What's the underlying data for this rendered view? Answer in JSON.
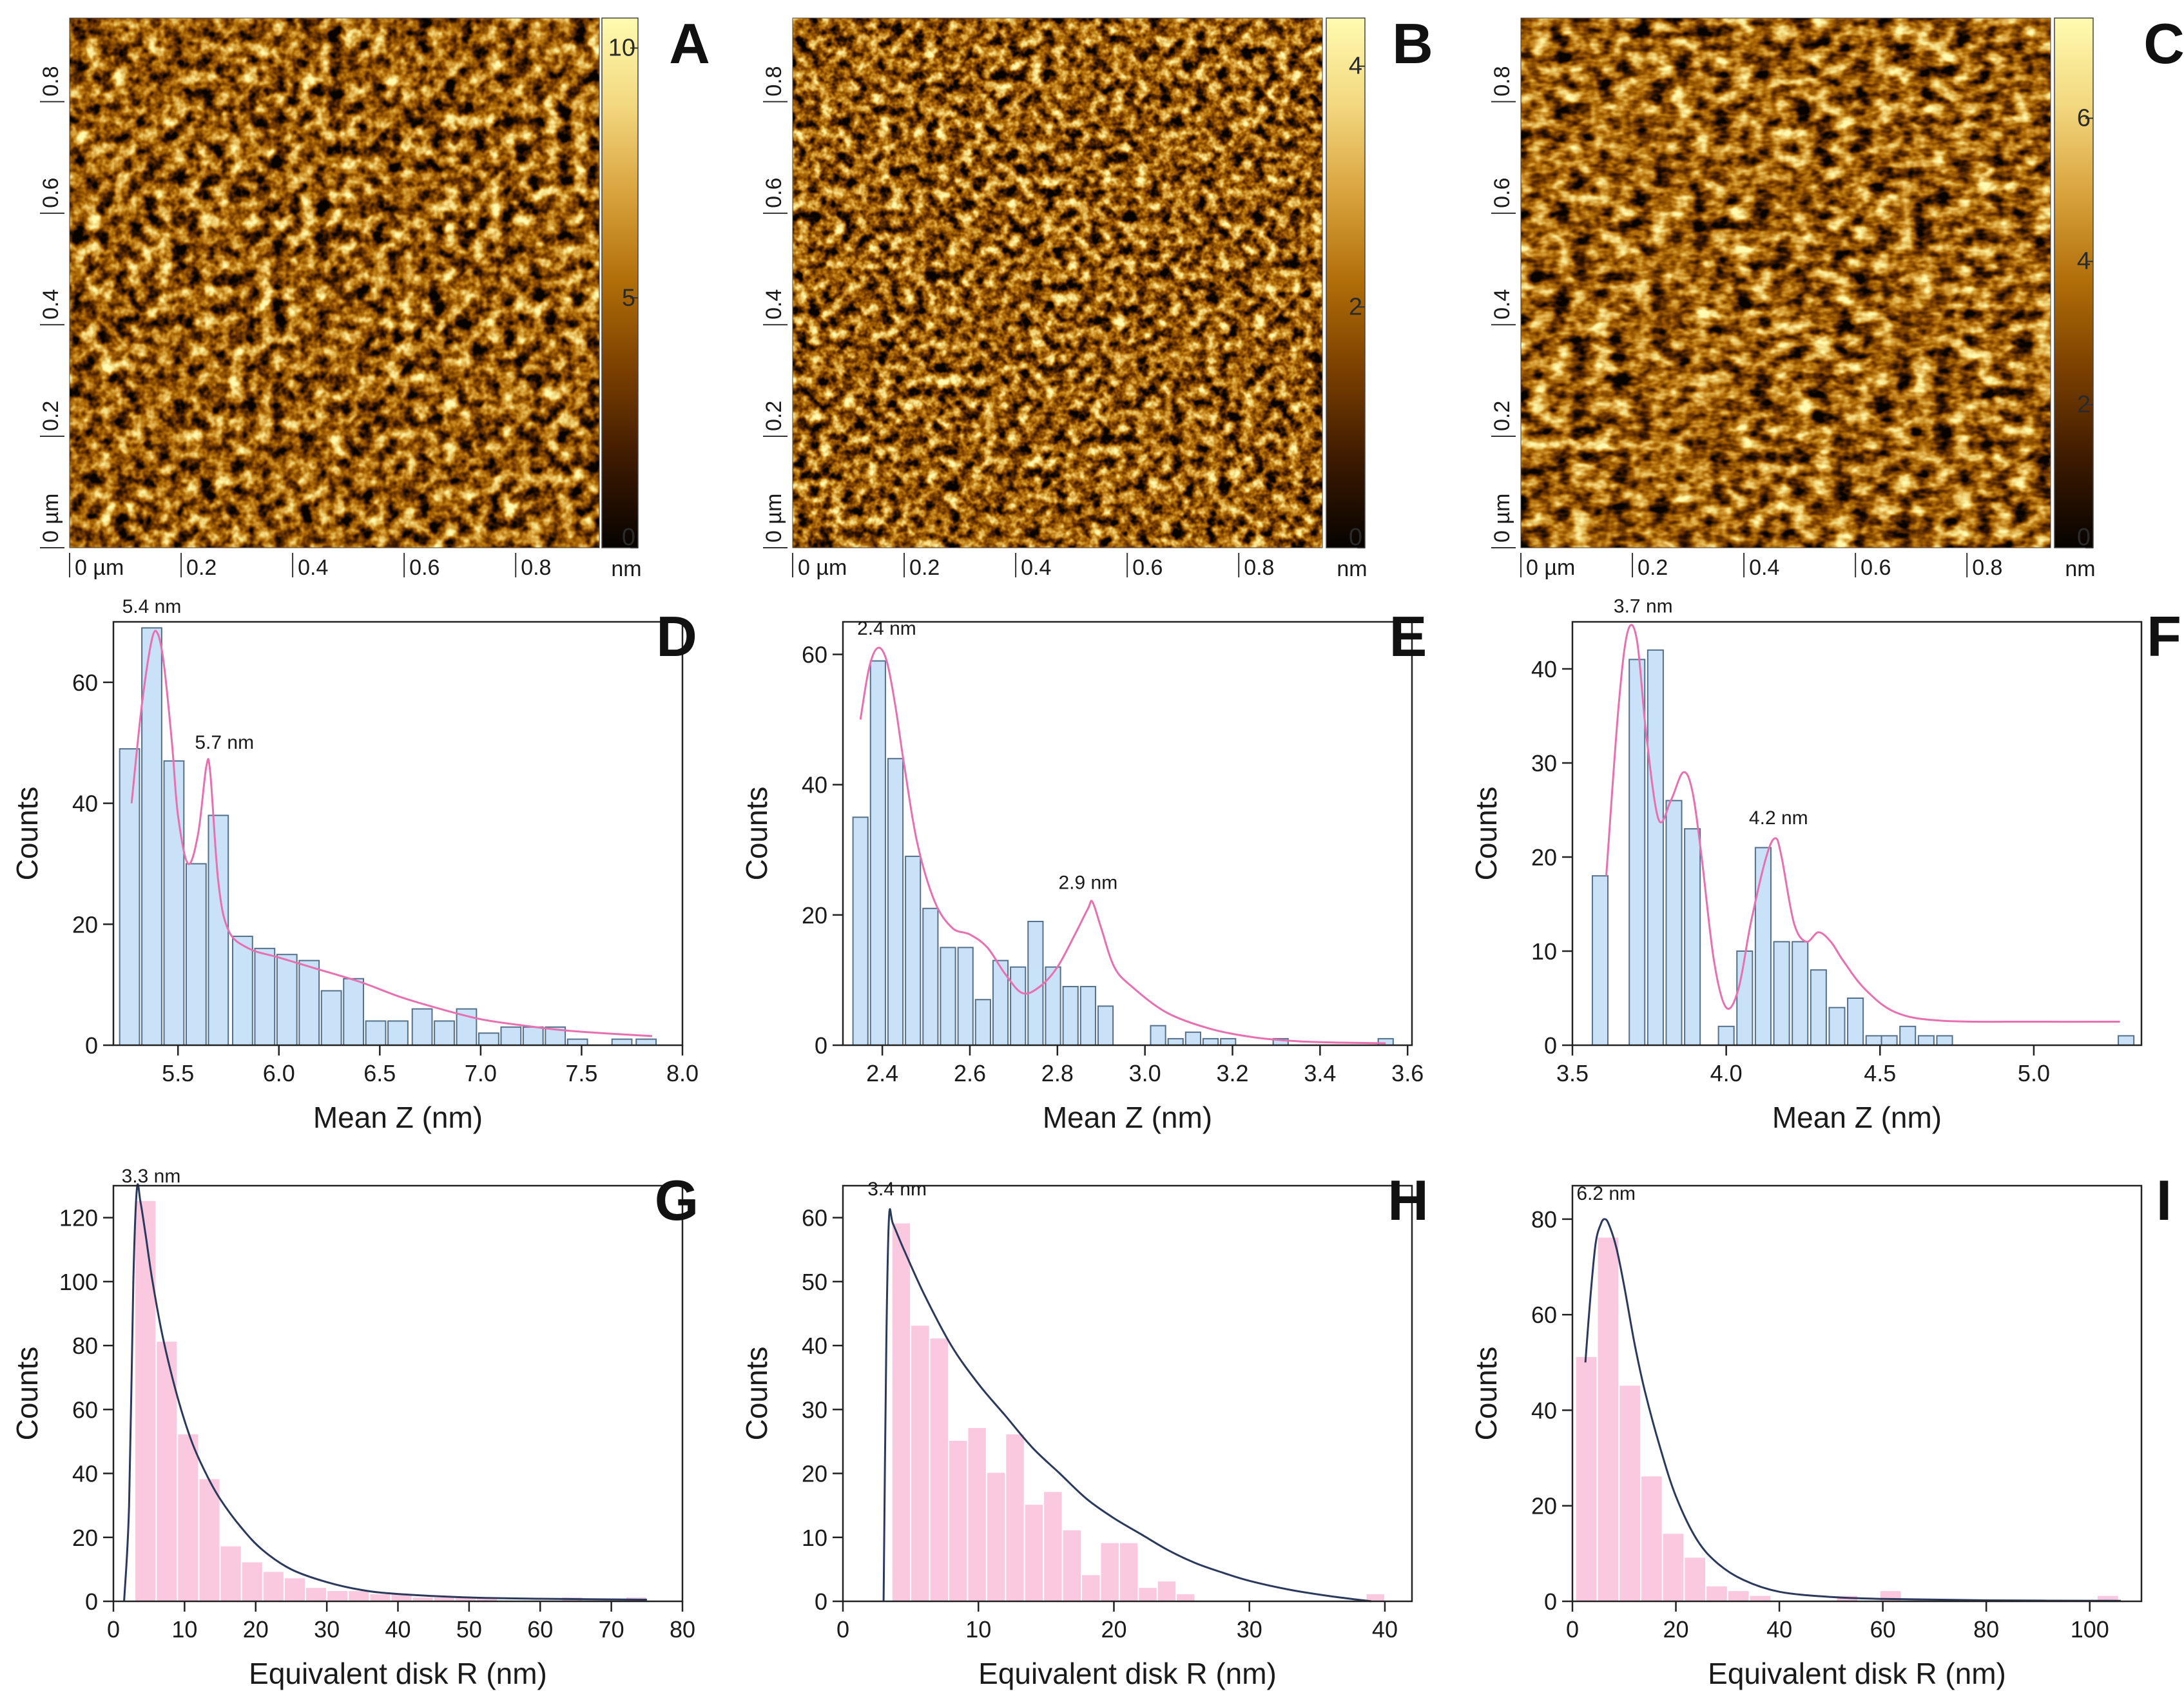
{
  "figure": {
    "afm_panels": [
      {
        "letter": "A",
        "x_ticks": [
          "0 µm",
          "0.2",
          "0.4",
          "0.6",
          "0.8"
        ],
        "y_ticks": [
          "0 µm",
          "0.2",
          "0.4",
          "0.6",
          "0.8"
        ],
        "scale_ticks": [
          "0",
          "5",
          "10"
        ],
        "scale_values": [
          0,
          5,
          10
        ],
        "scale_max": 10.6,
        "unit": "nm",
        "colormap": [
          "#060300",
          "#3d1a00",
          "#7a3f00",
          "#b06d08",
          "#d8a23c",
          "#f2d77e",
          "#fffbb0"
        ]
      },
      {
        "letter": "B",
        "x_ticks": [
          "0 µm",
          "0.2",
          "0.4",
          "0.6",
          "0.8"
        ],
        "y_ticks": [
          "0 µm",
          "0.2",
          "0.4",
          "0.6",
          "0.8"
        ],
        "scale_ticks": [
          "0",
          "2",
          "4"
        ],
        "scale_values": [
          0,
          2,
          4
        ],
        "scale_max": 4.4,
        "unit": "nm",
        "colormap": [
          "#060300",
          "#3d1a00",
          "#7a3f00",
          "#b06d08",
          "#d8a23c",
          "#f2d77e",
          "#fffbb0"
        ]
      },
      {
        "letter": "C",
        "x_ticks": [
          "0 µm",
          "0.2",
          "0.4",
          "0.6",
          "0.8"
        ],
        "y_ticks": [
          "0 µm",
          "0.2",
          "0.4",
          "0.6",
          "0.8"
        ],
        "scale_ticks": [
          "0",
          "2",
          "4",
          "6"
        ],
        "scale_values": [
          0,
          2,
          4,
          6
        ],
        "scale_max": 7.4,
        "unit": "nm",
        "colormap": [
          "#060300",
          "#3d1a00",
          "#7a3f00",
          "#b06d08",
          "#d8a23c",
          "#f2d77e",
          "#fffbb0"
        ]
      }
    ]
  },
  "chart_data": [
    {
      "panel": "D",
      "type": "bar",
      "xlabel": "Mean Z (nm)",
      "ylabel": "Counts",
      "xlim": [
        5.18,
        8.0
      ],
      "ylim": [
        0,
        70
      ],
      "x_ticks": [
        5.5,
        6.0,
        6.5,
        7.0,
        7.5,
        8.0
      ],
      "x_tick_labels": [
        "5.5",
        "6.0",
        "6.5",
        "7.0",
        "7.5",
        "8.0"
      ],
      "y_ticks": [
        0,
        20,
        40,
        60
      ],
      "y_tick_labels": [
        "0",
        "20",
        "40",
        "60"
      ],
      "bin_width": 0.111,
      "bins": [
        5.26,
        5.37,
        5.48,
        5.59,
        5.7,
        5.82,
        5.93,
        6.04,
        6.15,
        6.26,
        6.37,
        6.48,
        6.59,
        6.71,
        6.82,
        6.93,
        7.04,
        7.15,
        7.26,
        7.37,
        7.48,
        7.59,
        7.7,
        7.82
      ],
      "values": [
        49,
        69,
        47,
        30,
        38,
        18,
        16,
        15,
        14,
        9,
        11,
        4,
        4,
        6,
        4,
        6,
        2,
        3,
        3,
        3,
        1,
        0,
        1,
        1
      ],
      "fit": {
        "x": [
          5.27,
          5.32,
          5.37,
          5.4,
          5.43,
          5.47,
          5.5,
          5.55,
          5.6,
          5.64,
          5.66,
          5.7,
          5.75,
          5.85,
          6.0,
          6.2,
          6.4,
          6.6,
          6.8,
          7.0,
          7.2,
          7.4,
          7.6,
          7.85
        ],
        "y": [
          40,
          56,
          67,
          68,
          63,
          50,
          38,
          30,
          35,
          46,
          45,
          27,
          19,
          16,
          14.5,
          12.5,
          10.5,
          8,
          6,
          4.3,
          3.3,
          2.5,
          2,
          1.5
        ]
      },
      "bar_color": "#c9e2f7",
      "bar_edge": "#55708a",
      "fit_color": "#e870b0",
      "annotations": [
        {
          "text": "5.4 nm",
          "x": 5.37,
          "y": 71.5
        },
        {
          "text": "5.7 nm",
          "x": 5.73,
          "y": 49
        }
      ]
    },
    {
      "panel": "E",
      "type": "bar",
      "xlabel": "Mean Z (nm)",
      "ylabel": "Counts",
      "xlim": [
        2.31,
        3.61
      ],
      "ylim": [
        0,
        65
      ],
      "x_ticks": [
        2.4,
        2.6,
        2.8,
        3.0,
        3.2,
        3.4,
        3.6
      ],
      "x_tick_labels": [
        "2.4",
        "2.6",
        "2.8",
        "3.0",
        "3.2",
        "3.4",
        "3.6"
      ],
      "y_ticks": [
        0,
        20,
        40,
        60
      ],
      "y_tick_labels": [
        "0",
        "20",
        "40",
        "60"
      ],
      "bin_width": 0.04,
      "bins": [
        2.35,
        2.39,
        2.43,
        2.47,
        2.51,
        2.55,
        2.59,
        2.63,
        2.67,
        2.71,
        2.75,
        2.79,
        2.83,
        2.87,
        2.91,
        2.95,
        2.99,
        3.03,
        3.07,
        3.11,
        3.15,
        3.19,
        3.23,
        3.27,
        3.31,
        3.35,
        3.39,
        3.43,
        3.47,
        3.51,
        3.55
      ],
      "values": [
        35,
        59,
        44,
        29,
        21,
        15,
        15,
        7,
        13,
        12,
        19,
        12,
        9,
        9,
        6,
        0,
        0,
        3,
        1,
        2,
        1,
        1,
        0,
        0,
        1,
        0,
        0,
        0,
        0,
        0,
        1
      ],
      "fit": {
        "x": [
          2.35,
          2.37,
          2.39,
          2.41,
          2.43,
          2.45,
          2.48,
          2.52,
          2.56,
          2.6,
          2.64,
          2.68,
          2.72,
          2.76,
          2.8,
          2.84,
          2.87,
          2.88,
          2.9,
          2.93,
          2.97,
          3.05,
          3.15,
          3.25,
          3.35,
          3.45,
          3.55
        ],
        "y": [
          50,
          58,
          61,
          59,
          52,
          43,
          31,
          22,
          18,
          17,
          15,
          11,
          8,
          9,
          12,
          17,
          21,
          22,
          18,
          12,
          9,
          5,
          2.5,
          1.2,
          0.6,
          0.4,
          0.3
        ]
      },
      "bar_color": "#c9e2f7",
      "bar_edge": "#55708a",
      "fit_color": "#e870b0",
      "annotations": [
        {
          "text": "2.4 nm",
          "x": 2.41,
          "y": 63
        },
        {
          "text": "2.9 nm",
          "x": 2.87,
          "y": 24
        }
      ]
    },
    {
      "panel": "F",
      "type": "bar",
      "xlabel": "Mean Z (nm)",
      "ylabel": "Counts",
      "xlim": [
        3.5,
        5.35
      ],
      "ylim": [
        0,
        45
      ],
      "x_ticks": [
        3.5,
        4.0,
        4.5,
        5.0
      ],
      "x_tick_labels": [
        "3.5",
        "4.0",
        "4.5",
        "5.0"
      ],
      "y_ticks": [
        0,
        10,
        20,
        30,
        40
      ],
      "y_tick_labels": [
        "0",
        "10",
        "20",
        "30",
        "40"
      ],
      "bin_width": 0.0588,
      "bins": [
        3.59,
        3.65,
        3.71,
        3.77,
        3.83,
        3.89,
        3.95,
        4.0,
        4.06,
        4.12,
        4.18,
        4.24,
        4.3,
        4.36,
        4.42,
        4.48,
        4.53,
        4.59,
        4.65,
        4.71,
        4.77,
        4.83,
        4.89,
        4.95,
        5.01,
        5.06,
        5.12,
        5.18,
        5.24,
        5.3
      ],
      "values": [
        18,
        0,
        41,
        42,
        26,
        23,
        0,
        2,
        10,
        21,
        11,
        11,
        8,
        4,
        5,
        1,
        1,
        2,
        1,
        1,
        0,
        0,
        0,
        0,
        0,
        0,
        0,
        0,
        0,
        1
      ],
      "fit": {
        "x": [
          3.61,
          3.65,
          3.68,
          3.71,
          3.74,
          3.78,
          3.82,
          3.86,
          3.89,
          3.92,
          3.96,
          4.0,
          4.04,
          4.08,
          4.13,
          4.16,
          4.18,
          4.22,
          4.26,
          4.3,
          4.34,
          4.38,
          4.45,
          4.55,
          4.7,
          5.0,
          5.28
        ],
        "y": [
          18,
          36,
          44,
          43,
          33,
          24,
          26,
          29,
          27,
          20,
          9,
          4,
          6,
          13,
          20,
          22,
          20,
          13,
          11,
          12,
          11,
          9,
          6,
          3.5,
          2.6,
          2.5,
          2.5
        ]
      },
      "bar_color": "#c9e2f7",
      "bar_edge": "#55708a",
      "fit_color": "#e870b0",
      "annotations": [
        {
          "text": "3.7 nm",
          "x": 3.73,
          "y": 46
        },
        {
          "text": "4.2 nm",
          "x": 4.17,
          "y": 23.5
        }
      ]
    },
    {
      "panel": "G",
      "type": "bar",
      "xlabel": "Equivalent disk R (nm)",
      "ylabel": "Counts",
      "xlim": [
        0,
        80
      ],
      "ylim": [
        0,
        130
      ],
      "x_ticks": [
        0,
        10,
        20,
        30,
        40,
        50,
        60,
        70,
        80
      ],
      "x_tick_labels": [
        "0",
        "10",
        "20",
        "30",
        "40",
        "50",
        "60",
        "70",
        "80"
      ],
      "y_ticks": [
        0,
        20,
        40,
        60,
        80,
        100,
        120
      ],
      "y_tick_labels": [
        "0",
        "20",
        "40",
        "60",
        "80",
        "100",
        "120"
      ],
      "bin_width": 3.0,
      "bins": [
        4.5,
        7.5,
        10.5,
        13.5,
        16.5,
        19.5,
        22.5,
        25.5,
        28.5,
        31.5,
        34.5,
        37.5,
        40.5,
        43.5,
        46.5,
        49.5,
        52.5,
        55.5,
        58.5,
        61.5,
        64.5,
        67.5,
        70.5,
        73.5
      ],
      "values": [
        125,
        81,
        52,
        38,
        17,
        12,
        9,
        7,
        4,
        3,
        3,
        2,
        2,
        1,
        1,
        1,
        1,
        0,
        0,
        0,
        1,
        0,
        0,
        1
      ],
      "fit": {
        "x": [
          1.5,
          2.2,
          2.8,
          3.3,
          3.8,
          4.5,
          5.5,
          7,
          9,
          11,
          13,
          15,
          18,
          21,
          25,
          30,
          35,
          40,
          50,
          60,
          75
        ],
        "y": [
          0,
          30,
          100,
          129,
          125,
          115,
          100,
          82,
          64,
          50,
          40,
          32,
          23,
          16,
          10,
          6,
          3.5,
          2.3,
          1.2,
          0.8,
          0.5
        ]
      },
      "bar_color": "#fac8df",
      "bar_edge": "#fac8df",
      "fit_color": "#2b3a5c",
      "annotations": [
        {
          "text": "3.3 nm",
          "x": 5.3,
          "y": 131
        }
      ]
    },
    {
      "panel": "H",
      "type": "bar",
      "xlabel": "Equivalent disk R (nm)",
      "ylabel": "Counts",
      "xlim": [
        0,
        42
      ],
      "ylim": [
        0,
        65
      ],
      "x_ticks": [
        0,
        10,
        20,
        30,
        40
      ],
      "x_tick_labels": [
        "0",
        "10",
        "20",
        "30",
        "40"
      ],
      "y_ticks": [
        0,
        10,
        20,
        30,
        40,
        50,
        60
      ],
      "y_tick_labels": [
        "0",
        "10",
        "20",
        "30",
        "40",
        "50",
        "60"
      ],
      "bin_width": 1.4,
      "bins": [
        4.3,
        5.7,
        7.1,
        8.5,
        9.9,
        11.3,
        12.7,
        14.1,
        15.5,
        16.9,
        18.3,
        19.7,
        21.1,
        22.5,
        23.9,
        25.3,
        26.7,
        28.1,
        29.5,
        30.9,
        32.3,
        33.7,
        35.1,
        36.5,
        37.9,
        39.3
      ],
      "values": [
        59,
        43,
        41,
        25,
        27,
        20,
        26,
        15,
        17,
        11,
        4,
        9,
        9,
        2,
        3,
        1,
        0,
        0,
        0,
        0,
        0,
        0,
        0,
        0,
        0,
        1
      ],
      "fit": {
        "x": [
          3.0,
          3.2,
          3.4,
          3.7,
          4.5,
          6,
          8,
          10,
          12,
          14,
          16,
          18,
          20,
          22,
          24,
          26,
          28,
          30,
          33,
          36,
          39
        ],
        "y": [
          0,
          40,
          60,
          59,
          55,
          48,
          40,
          34,
          29,
          24,
          20,
          16,
          13,
          10.5,
          8,
          6,
          4.5,
          3.2,
          1.8,
          0.8,
          0
        ]
      },
      "bar_color": "#fac8df",
      "bar_edge": "#fac8df",
      "fit_color": "#2b3a5c",
      "annotations": [
        {
          "text": "3.4 nm",
          "x": 4.0,
          "y": 63.5
        }
      ]
    },
    {
      "panel": "I",
      "type": "bar",
      "xlabel": "Equivalent disk R (nm)",
      "ylabel": "Counts",
      "xlim": [
        0,
        110
      ],
      "ylim": [
        0,
        87
      ],
      "x_ticks": [
        0,
        20,
        40,
        60,
        80,
        100
      ],
      "x_tick_labels": [
        "0",
        "20",
        "40",
        "60",
        "80",
        "100"
      ],
      "y_ticks": [
        0,
        20,
        40,
        60,
        80
      ],
      "y_tick_labels": [
        "0",
        "20",
        "40",
        "60",
        "80"
      ],
      "bin_width": 4.2,
      "bins": [
        2.7,
        6.9,
        11.1,
        15.3,
        19.5,
        23.7,
        27.9,
        32.1,
        36.3,
        40.5,
        44.7,
        48.9,
        53.1,
        57.3,
        61.5,
        65.7,
        69.9,
        74.1,
        78.3,
        82.5,
        86.7,
        90.9,
        95.1,
        99.3,
        103.5
      ],
      "values": [
        51,
        76,
        45,
        26,
        14,
        9,
        3,
        2,
        1,
        0,
        0,
        0,
        1,
        0,
        2,
        0,
        0,
        0,
        0,
        0,
        0,
        0,
        0,
        0,
        1
      ],
      "fit": {
        "x": [
          2.5,
          3.5,
          4.5,
          5.5,
          6.2,
          7,
          8.5,
          10,
          12,
          14,
          17,
          20,
          24,
          28,
          33,
          40,
          50,
          60,
          80,
          106
        ],
        "y": [
          50,
          64,
          75,
          79,
          80,
          79,
          74,
          66,
          54,
          44,
          32,
          22,
          13,
          8,
          4.5,
          2,
          0.9,
          0.5,
          0.2,
          0.1
        ]
      },
      "bar_color": "#fac8df",
      "bar_edge": "#fac8df",
      "fit_color": "#2b3a5c",
      "annotations": [
        {
          "text": "6.2 nm",
          "x": 6.5,
          "y": 84
        }
      ]
    }
  ]
}
